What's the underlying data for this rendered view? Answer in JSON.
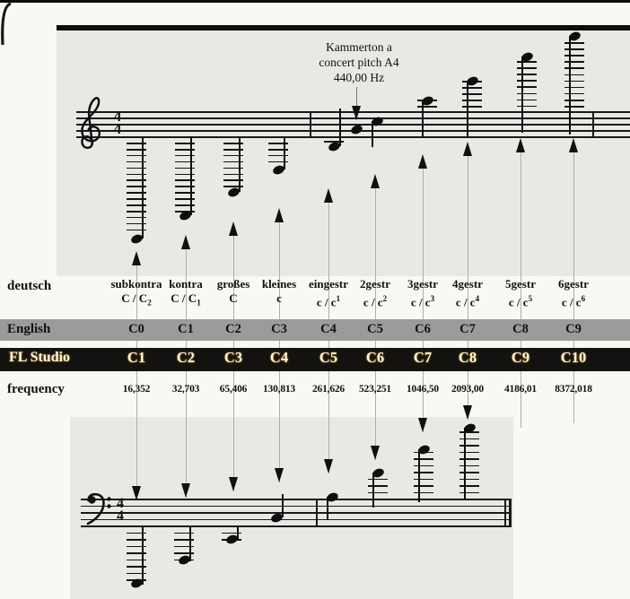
{
  "annotation": {
    "line1": "Kammerton a",
    "line2": "concert pitch A4",
    "line3": "440,00 Hz"
  },
  "rows": {
    "german_label": "deutsch",
    "english_label": "English",
    "fl_label": "FL Studio",
    "frequency_label": "frequency"
  },
  "columns": [
    {
      "german": [
        "subkontra",
        "C / C"
      ],
      "german_octave": {
        "text": "2",
        "pos": "sub"
      },
      "english": "C0",
      "fl": "C1",
      "frequency": "16,352"
    },
    {
      "german": [
        "kontra",
        "C / C"
      ],
      "german_octave": {
        "text": "1",
        "pos": "sub"
      },
      "english": "C1",
      "fl": "C2",
      "frequency": "32,703"
    },
    {
      "german": [
        "großes",
        "C"
      ],
      "german_octave": null,
      "english": "C2",
      "fl": "C3",
      "frequency": "65,406"
    },
    {
      "german": [
        "kleines",
        "c"
      ],
      "german_octave": null,
      "english": "C3",
      "fl": "C4",
      "frequency": "130,813"
    },
    {
      "german": [
        "eingestr",
        "c / c"
      ],
      "german_octave": {
        "text": "1",
        "pos": "sup"
      },
      "english": "C4",
      "fl": "C5",
      "frequency": "261,626"
    },
    {
      "german": [
        "2gestr",
        "c / c"
      ],
      "german_octave": {
        "text": "2",
        "pos": "sup"
      },
      "english": "C5",
      "fl": "C6",
      "frequency": "523,251"
    },
    {
      "german": [
        "3gestr",
        "c / c"
      ],
      "german_octave": {
        "text": "3",
        "pos": "sup"
      },
      "english": "C6",
      "fl": "C7",
      "frequency": "1046,50"
    },
    {
      "german": [
        "4gestr",
        "c / c"
      ],
      "german_octave": {
        "text": "4",
        "pos": "sup"
      },
      "english": "C7",
      "fl": "C8",
      "frequency": "2093,00"
    },
    {
      "german": [
        "5gestr",
        "c / c"
      ],
      "german_octave": {
        "text": "5",
        "pos": "sup"
      },
      "english": "C8",
      "fl": "C9",
      "frequency": "4186,01"
    },
    {
      "german": [
        "6gestr",
        "c / c"
      ],
      "german_octave": {
        "text": "6",
        "pos": "sup"
      },
      "english": "C9",
      "fl": "C10",
      "frequency": "8372,018"
    }
  ],
  "staves": {
    "treble": {
      "clef": "treble",
      "time_signature": [
        "4",
        "4"
      ],
      "notes": [
        "C0",
        "C1",
        "C2",
        "C3",
        "C4",
        "A4",
        "C5",
        "C6",
        "C7",
        "C8",
        "C9"
      ]
    },
    "bass": {
      "clef": "bass",
      "time_signature": [
        "4",
        "4"
      ],
      "notes": [
        "C0",
        "C1",
        "C2",
        "C3",
        "C4",
        "C5",
        "C6",
        "C7"
      ]
    }
  },
  "colors": {
    "paper": "#f9f8f5",
    "staff_tint": "#e9e8e4",
    "ink": "#111111",
    "english_bar": "#9b9b99",
    "fl_bar": "#141210",
    "fl_text": "#fcf5e0",
    "arrow_tail": "#adadaa"
  }
}
